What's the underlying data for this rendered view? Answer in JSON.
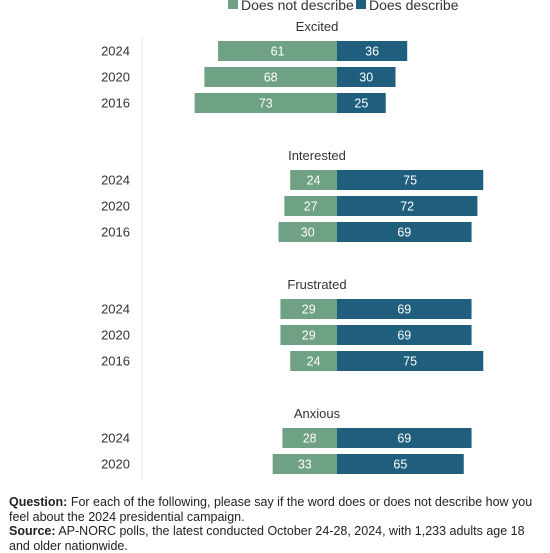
{
  "legend": {
    "not_label": "Does not describe",
    "describe_label": "Does describe",
    "not_color": "#6fa185",
    "describe_color": "#1f5f7d"
  },
  "chart_data": {
    "type": "bar",
    "orientation": "horizontal-diverging",
    "grid": false,
    "legend_position": "top",
    "series": [
      {
        "name": "Does not describe",
        "color": "#6fa185"
      },
      {
        "name": "Does describe",
        "color": "#1f5f7d"
      }
    ],
    "groups": [
      {
        "title": "Excited",
        "rows": [
          {
            "year": "2024",
            "not": 61,
            "describe": 36
          },
          {
            "year": "2020",
            "not": 68,
            "describe": 30
          },
          {
            "year": "2016",
            "not": 73,
            "describe": 25
          }
        ]
      },
      {
        "title": "Interested",
        "rows": [
          {
            "year": "2024",
            "not": 24,
            "describe": 75
          },
          {
            "year": "2020",
            "not": 27,
            "describe": 72
          },
          {
            "year": "2016",
            "not": 30,
            "describe": 69
          }
        ]
      },
      {
        "title": "Frustrated",
        "rows": [
          {
            "year": "2024",
            "not": 29,
            "describe": 69
          },
          {
            "year": "2020",
            "not": 29,
            "describe": 69
          },
          {
            "year": "2016",
            "not": 24,
            "describe": 75
          }
        ]
      },
      {
        "title": "Anxious",
        "rows": [
          {
            "year": "2024",
            "not": 28,
            "describe": 69
          },
          {
            "year": "2020",
            "not": 33,
            "describe": 65
          }
        ]
      }
    ]
  },
  "footnote": {
    "question_label": "Question:",
    "question_text": " For each of the following, please say if the word does or does not describe how you feel about the 2024 presidential campaign.",
    "source_label": "Source:",
    "source_text": " AP-NORC polls, the latest conducted October 24-28, 2024, with 1,233 adults age 18 and older nationwide."
  }
}
